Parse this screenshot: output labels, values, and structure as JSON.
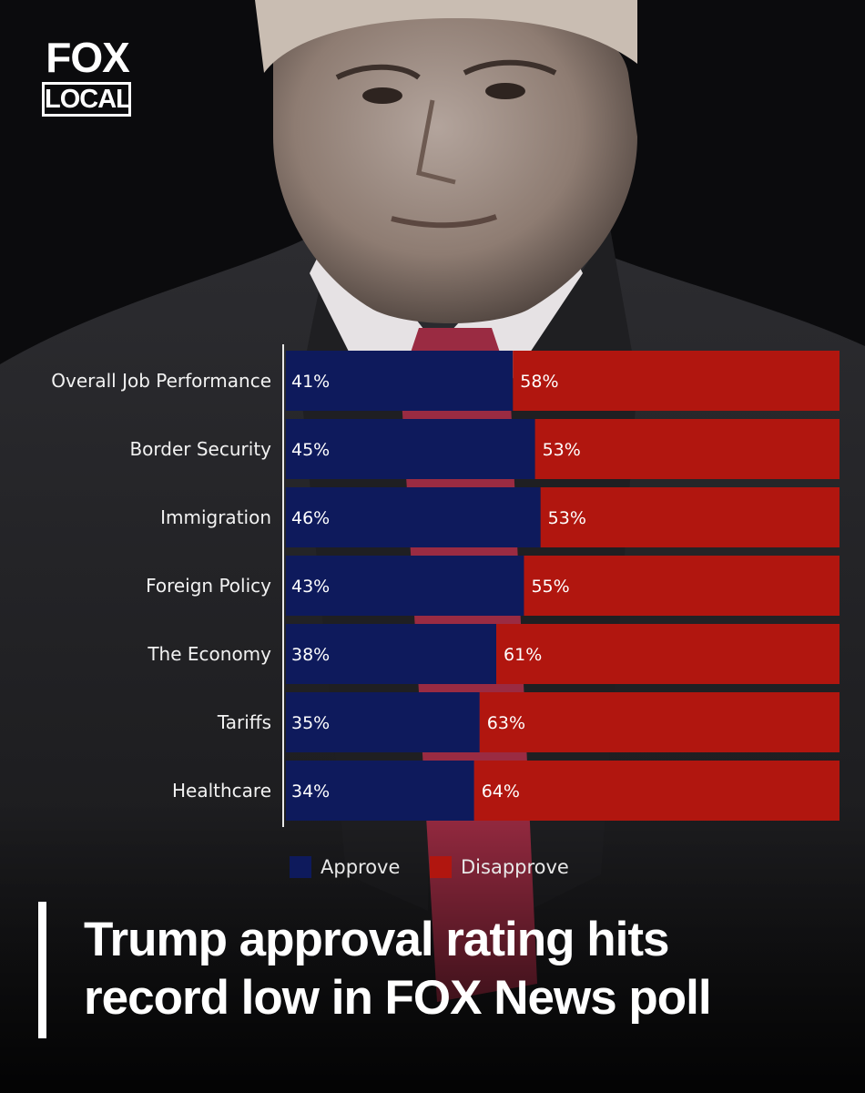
{
  "logo": {
    "line1": "FOX",
    "line2": "LOCAL"
  },
  "headline": {
    "line1": "Trump approval rating hits",
    "line2": "record low in FOX News poll"
  },
  "colors": {
    "approve": "#0e1a5c",
    "disapprove": "#b1160f"
  },
  "chart_data": {
    "type": "bar",
    "orientation": "horizontal",
    "stacked": true,
    "categories": [
      "Overall Job Performance",
      "Border Security",
      "Immigration",
      "Foreign Policy",
      "The Economy",
      "Tariffs",
      "Healthcare"
    ],
    "series": [
      {
        "name": "Approve",
        "values": [
          41,
          45,
          46,
          43,
          38,
          35,
          34
        ],
        "labels": [
          "41%",
          "45%",
          "46%",
          "43%",
          "38%",
          "35%",
          "34%"
        ]
      },
      {
        "name": "Disapprove",
        "values": [
          58,
          53,
          53,
          55,
          61,
          63,
          64
        ],
        "labels": [
          "58%",
          "53%",
          "53%",
          "55%",
          "61%",
          "63%",
          "64%"
        ]
      }
    ],
    "xlim": [
      0,
      100
    ],
    "legend": "bottom"
  }
}
